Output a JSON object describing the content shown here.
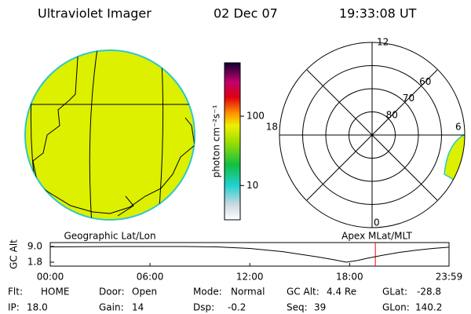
{
  "header": {
    "title": "Ultraviolet Imager",
    "date": "02 Dec 07",
    "time": "19:33:08 UT"
  },
  "colorbar": {
    "label": "photon cm⁻²s⁻¹",
    "log": true,
    "clim": [
      3.2,
      590
    ],
    "ticks": [
      10,
      100
    ]
  },
  "polar": {
    "lat_edge": 50,
    "lat_rings": [
      60,
      70,
      80
    ],
    "mlt_labels": [
      "12",
      "18",
      "6",
      "0"
    ]
  },
  "timeline": {
    "left_label": "Geographic Lat/Lon",
    "right_label": "Apex MLat/MLT",
    "ylabel": "GC Alt",
    "x": [
      0,
      2,
      4,
      6,
      8,
      10,
      12,
      14,
      16,
      17,
      17.8,
      18.5,
      19,
      20,
      21,
      22,
      23,
      23.98
    ],
    "values": [
      8.8,
      8.9,
      9.0,
      9.0,
      9.0,
      8.8,
      8.1,
      6.6,
      4.3,
      3.0,
      1.8,
      2.6,
      3.5,
      5.0,
      6.3,
      7.3,
      8.1,
      8.7
    ],
    "color": "#000000",
    "marker": 19.55,
    "marker_color": "#ff0000",
    "xlim": [
      0,
      23.98
    ],
    "ylim": [
      0,
      10.8
    ],
    "xticks": [
      {
        "value": 0,
        "label": "00:00"
      },
      {
        "value": 6,
        "label": "06:00"
      },
      {
        "value": 12,
        "label": "12:00"
      },
      {
        "value": 18,
        "label": "18:00"
      },
      {
        "value": 23.98,
        "label": "23:59"
      }
    ],
    "yticks": [
      {
        "value": 1.8,
        "label": "1.8"
      },
      {
        "value": 9,
        "label": "9.0"
      }
    ]
  },
  "fields": [
    [
      {
        "label": "Flt:",
        "value": "HOME"
      },
      {
        "label": "Door:",
        "value": "Open"
      },
      {
        "label": "Mode:",
        "value": "Normal"
      },
      {
        "label": "GC Alt:",
        "value": "4.4 Re"
      },
      {
        "label": "GLat:",
        "value": "-28.8"
      }
    ],
    [
      {
        "label": "IP:",
        "value": "18.0"
      },
      {
        "label": "Gain:",
        "value": "14"
      },
      {
        "label": "Dsp:",
        "value": "-0.2"
      },
      {
        "label": "Seq:",
        "value": "39"
      },
      {
        "label": "GLon:",
        "value": "140.2"
      }
    ]
  ]
}
